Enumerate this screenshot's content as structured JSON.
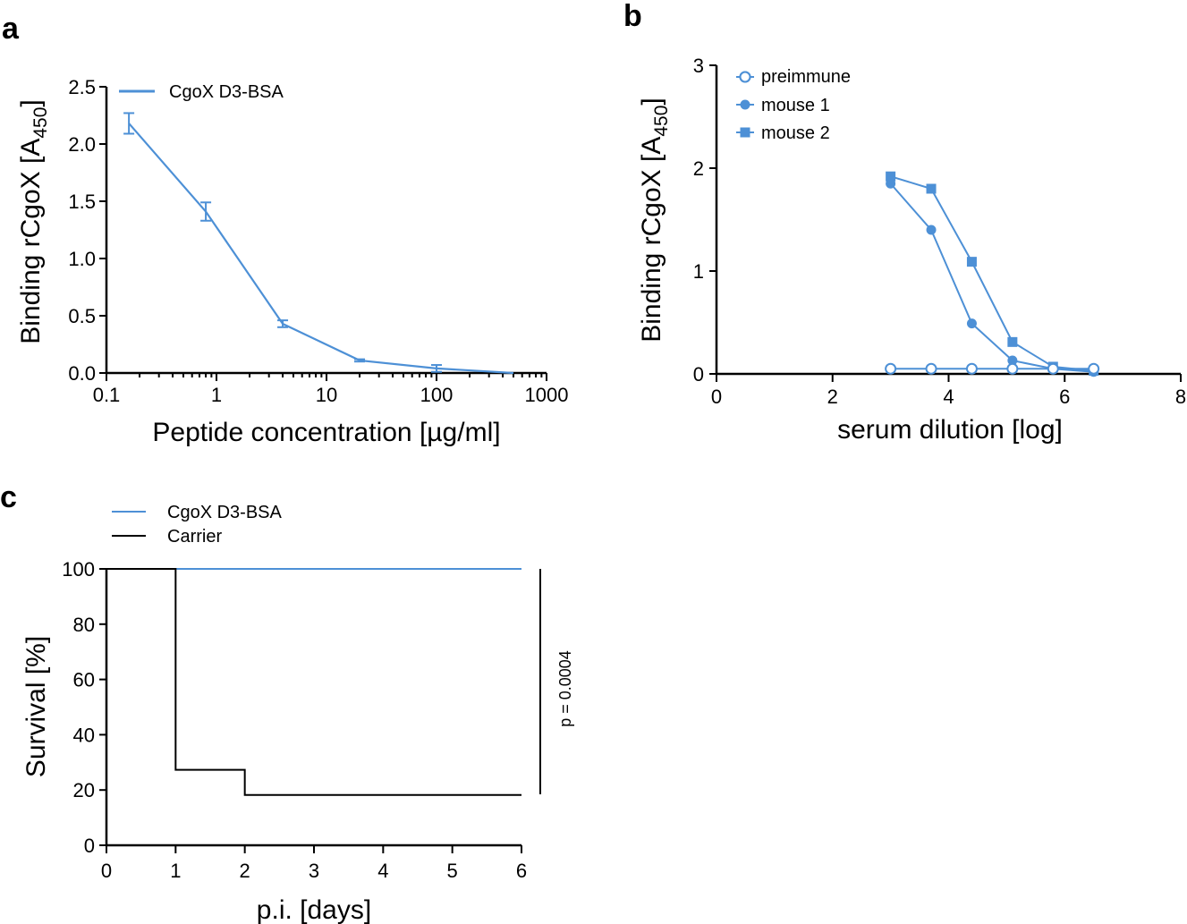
{
  "figure": {
    "panel_labels": [
      "a",
      "b",
      "c"
    ]
  },
  "chart_data": [
    {
      "panel": "a",
      "type": "line",
      "xscale": "log",
      "title": "",
      "xlabel": "Peptide concentration [µg/ml]",
      "ylabel_main": "Binding rCgoX [A",
      "ylabel_sub": "450",
      "ylabel_close": "]",
      "xlim": [
        0.1,
        1000
      ],
      "ylim": [
        0.0,
        2.5
      ],
      "x_ticks": [
        0.1,
        1,
        10,
        100,
        1000
      ],
      "x_tick_labels": [
        "0.1",
        "1",
        "10",
        "100",
        "1000"
      ],
      "y_ticks": [
        0.0,
        0.5,
        1.0,
        1.5,
        2.0,
        2.5
      ],
      "y_tick_labels": [
        "0.0",
        "0.5",
        "1.0",
        "1.5",
        "2.0",
        "2.5"
      ],
      "legend_position": "top-left",
      "color": "#4d90d6",
      "series": [
        {
          "name": "CgoX D3-BSA",
          "x": [
            0.16,
            0.8,
            4,
            20,
            100,
            500
          ],
          "y": [
            2.18,
            1.41,
            0.43,
            0.11,
            0.04,
            0.0
          ],
          "err": [
            0.09,
            0.08,
            0.03,
            0.01,
            0.03,
            0.0
          ]
        }
      ]
    },
    {
      "panel": "b",
      "type": "line",
      "title": "",
      "xlabel": "serum dilution [log]",
      "ylabel_main": "Binding rCgoX [A",
      "ylabel_sub": "450",
      "ylabel_close": "]",
      "xlim": [
        0,
        8
      ],
      "ylim": [
        0,
        3
      ],
      "x_ticks": [
        0,
        2,
        4,
        6,
        8
      ],
      "x_tick_labels": [
        "0",
        "2",
        "4",
        "6",
        "8"
      ],
      "y_ticks": [
        0,
        1,
        2,
        3
      ],
      "y_tick_labels": [
        "0",
        "1",
        "2",
        "3"
      ],
      "legend_position": "top-left",
      "color": "#4d90d6",
      "series": [
        {
          "name": "preimmune",
          "marker": "open-circle",
          "x": [
            3.0,
            3.7,
            4.4,
            5.1,
            5.8,
            6.5
          ],
          "y": [
            0.05,
            0.05,
            0.05,
            0.05,
            0.05,
            0.05
          ]
        },
        {
          "name": "mouse 1",
          "marker": "filled-circle",
          "x": [
            3.0,
            3.7,
            4.4,
            5.1,
            5.8,
            6.5
          ],
          "y": [
            1.85,
            1.4,
            0.49,
            0.13,
            0.05,
            0.02
          ]
        },
        {
          "name": "mouse 2",
          "marker": "filled-square",
          "x": [
            3.0,
            3.7,
            4.4,
            5.1,
            5.8,
            6.5
          ],
          "y": [
            1.92,
            1.8,
            1.09,
            0.31,
            0.07,
            0.03
          ]
        }
      ]
    },
    {
      "panel": "c",
      "type": "line",
      "step": true,
      "title": "",
      "xlabel": "p.i. [days]",
      "ylabel": "Survival [%]",
      "xlim": [
        0,
        6
      ],
      "ylim": [
        0,
        100
      ],
      "x_ticks": [
        0,
        1,
        2,
        3,
        4,
        5,
        6
      ],
      "x_tick_labels": [
        "0",
        "1",
        "2",
        "3",
        "4",
        "5",
        "6"
      ],
      "y_ticks": [
        0,
        20,
        40,
        60,
        80,
        100
      ],
      "y_tick_labels": [
        "0",
        "20",
        "40",
        "60",
        "80",
        "100"
      ],
      "legend_position": "top-left",
      "annotation": "p = 0.0004",
      "series": [
        {
          "name": "CgoX D3-BSA",
          "color": "#4d90d6",
          "x": [
            0,
            6
          ],
          "y": [
            100,
            100
          ]
        },
        {
          "name": "Carrier",
          "color": "#000000",
          "x": [
            0,
            1,
            2,
            6
          ],
          "y": [
            100,
            27.3,
            18.2,
            18.2
          ]
        }
      ]
    }
  ]
}
